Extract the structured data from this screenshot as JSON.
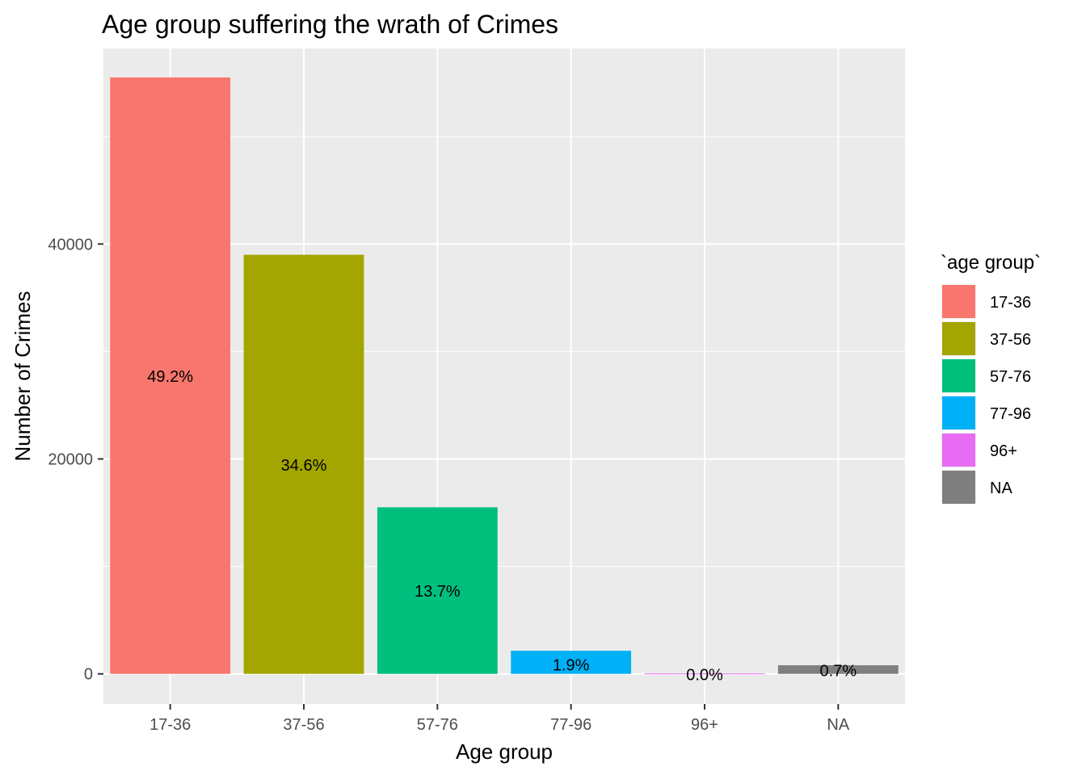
{
  "chart_data": {
    "type": "bar",
    "title": "Age group suffering the wrath of Crimes",
    "xlabel": "Age group",
    "ylabel": "Number of Crimes",
    "categories": [
      "17-36",
      "37-56",
      "57-76",
      "77-96",
      "96+",
      "NA"
    ],
    "values": [
      55500,
      39000,
      15500,
      2150,
      40,
      800
    ],
    "labels": [
      "49.2%",
      "34.6%",
      "13.7%",
      "1.9%",
      "0.0%",
      "0.7%"
    ],
    "label_y": [
      27700,
      19450,
      7700,
      850,
      -50,
      300
    ],
    "colors": [
      "#F8766D",
      "#A3A500",
      "#00BF7D",
      "#00B0F6",
      "#E76BF3",
      "#7F7F7F"
    ],
    "ylim": [
      -2800,
      58200
    ],
    "yticks": [
      0,
      20000,
      40000
    ],
    "yticks_minor": [
      10000,
      30000,
      50000
    ],
    "yticklabels": [
      "0",
      "20000",
      "40000"
    ],
    "grid": true,
    "legend": {
      "title": "`age group`",
      "placement": "right",
      "items": [
        "17-36",
        "37-56",
        "57-76",
        "77-96",
        "96+",
        "NA"
      ]
    }
  }
}
